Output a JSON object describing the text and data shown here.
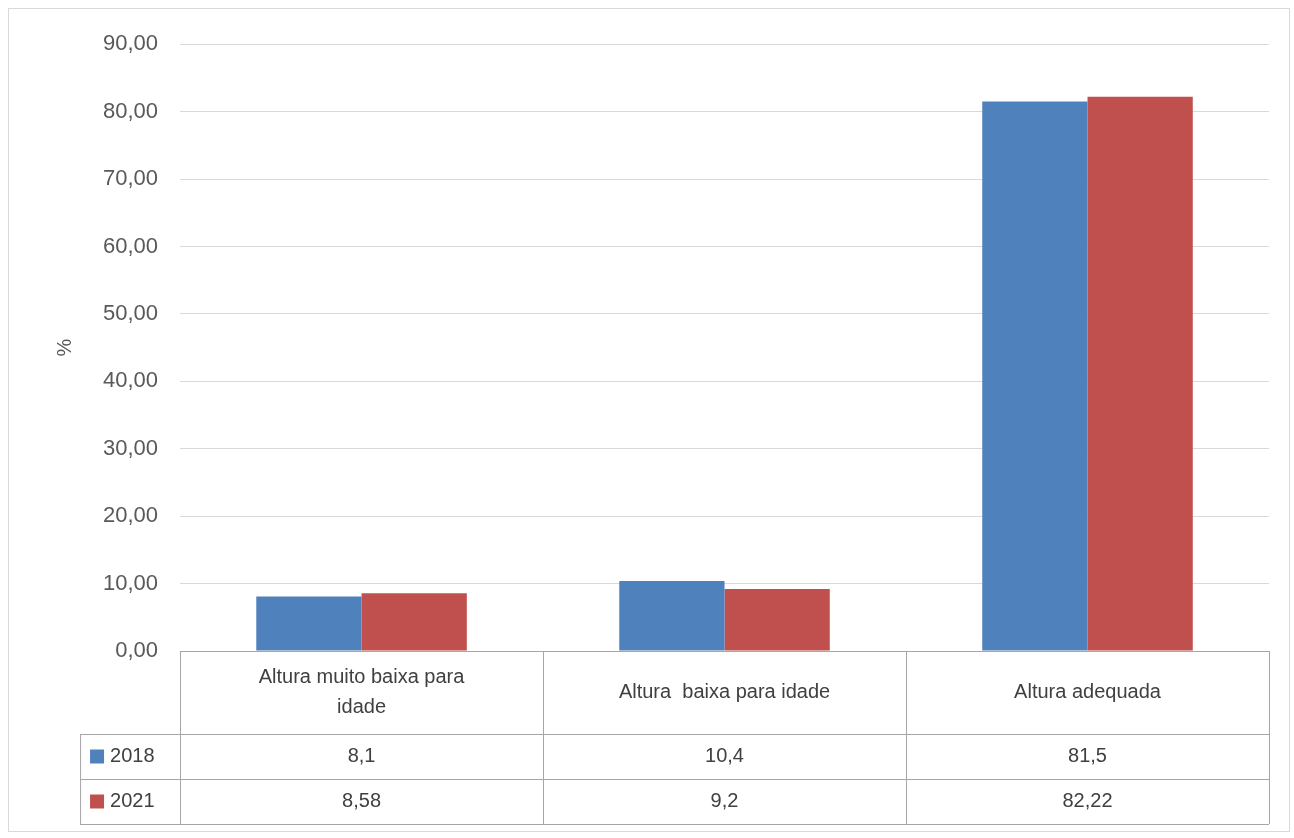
{
  "chart_data": {
    "type": "bar",
    "ylabel": "%",
    "categories": [
      "Altura muito baixa para idade",
      "Altura  baixa para idade",
      "Altura adequada"
    ],
    "series": [
      {
        "name": "2018",
        "color": "#4f81bd",
        "values": [
          8.1,
          10.4,
          81.5
        ],
        "value_labels": [
          "8,1",
          "10,4",
          "81,5"
        ]
      },
      {
        "name": "2021",
        "color": "#c0504d",
        "values": [
          8.58,
          9.2,
          82.22
        ],
        "value_labels": [
          "8,58",
          "9,2",
          "82,22"
        ]
      }
    ],
    "ylim": [
      0,
      90
    ],
    "yticks": [
      {
        "value": 0,
        "label": "0,00"
      },
      {
        "value": 10,
        "label": "10,00"
      },
      {
        "value": 20,
        "label": "20,00"
      },
      {
        "value": 30,
        "label": "30,00"
      },
      {
        "value": 40,
        "label": "40,00"
      },
      {
        "value": 50,
        "label": "50,00"
      },
      {
        "value": 60,
        "label": "60,00"
      },
      {
        "value": 70,
        "label": "70,00"
      },
      {
        "value": 80,
        "label": "80,00"
      },
      {
        "value": 90,
        "label": "90,00"
      }
    ],
    "grid": "y",
    "legend": "bottom"
  }
}
